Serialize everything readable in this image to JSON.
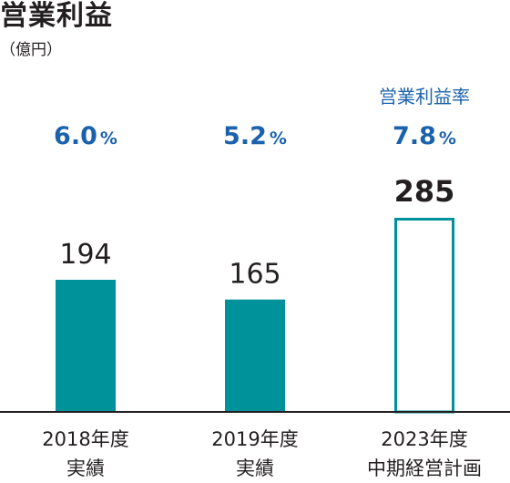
{
  "title": "営業利益",
  "unit": "（億円）",
  "colors": {
    "bar_fill": "#00929a",
    "plan_stroke": "#00929a",
    "rate_text": "#1b62ad",
    "value_text": "#231f20",
    "axis": "#231f20"
  },
  "chart_data": {
    "type": "bar",
    "title": "営業利益",
    "ylabel": "（億円）",
    "categories": [
      [
        "2018年度",
        "実績"
      ],
      [
        "2019年度",
        "実績"
      ],
      [
        "2023年度",
        "中期経営計画"
      ]
    ],
    "values": [
      194,
      165,
      285
    ],
    "value_labels": [
      "194",
      "165",
      "285"
    ],
    "margin_label": "営業利益率",
    "margins": [
      {
        "number": "6.0",
        "suffix": "%"
      },
      {
        "number": "5.2",
        "suffix": "%"
      },
      {
        "number": "7.8",
        "suffix": "%"
      }
    ],
    "bar_styles": [
      "filled",
      "filled",
      "outline"
    ],
    "ylim": [
      0,
      285
    ],
    "grid": false,
    "legend": "none"
  }
}
